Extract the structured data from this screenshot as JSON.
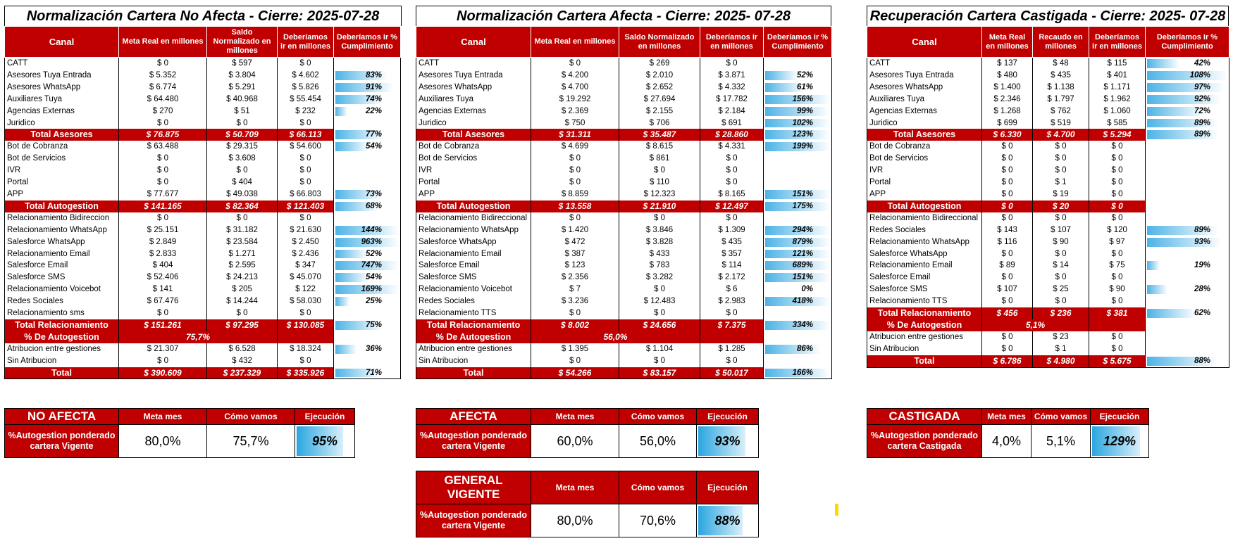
{
  "colors": {
    "header_red": "#c00000",
    "bar_blue": "#4db3e6",
    "marker_yellow": "#ffd800"
  },
  "tables": [
    {
      "title": "Normalización Cartera No Afecta - Cierre: 2025-07-28",
      "headers": [
        "Canal",
        "Meta Real en millones",
        "Saldo Normalizado en millones",
        "Deberíamos ir en millones",
        "Deberíamos ir % Cumplimiento"
      ],
      "rows": [
        {
          "canal": "CATT",
          "meta": "$ 0",
          "saldo": "$ 597",
          "deb": "$ 0",
          "pct": "",
          "fill": 0
        },
        {
          "canal": "Asesores Tuya Entrada",
          "meta": "$ 5.352",
          "saldo": "$ 3.804",
          "deb": "$ 4.602",
          "pct": "83%",
          "fill": 0.83
        },
        {
          "canal": "Asesores WhatsApp",
          "meta": "$ 6.774",
          "saldo": "$ 5.291",
          "deb": "$ 5.826",
          "pct": "91%",
          "fill": 0.91
        },
        {
          "canal": "Auxiliares Tuya",
          "meta": "$ 64.480",
          "saldo": "$ 40.968",
          "deb": "$ 55.454",
          "pct": "74%",
          "fill": 0.74
        },
        {
          "canal": "Agencias Externas",
          "meta": "$ 270",
          "saldo": "$ 51",
          "deb": "$ 232",
          "pct": "22%",
          "fill": 0.22
        },
        {
          "canal": "Juridico",
          "meta": "$ 0",
          "saldo": "$ 0",
          "deb": "$ 0",
          "pct": "",
          "fill": 0
        },
        {
          "total": true,
          "canal": "Total Asesores",
          "meta": "$ 76.875",
          "saldo": "$ 50.709",
          "deb": "$ 66.113",
          "pct": "77%",
          "fill": 0.77
        },
        {
          "canal": "Bot de Cobranza",
          "meta": "$ 63.488",
          "saldo": "$ 29.315",
          "deb": "$ 54.600",
          "pct": "54%",
          "fill": 0.54
        },
        {
          "canal": "Bot de Servicios",
          "meta": "$ 0",
          "saldo": "$ 3.608",
          "deb": "$ 0",
          "pct": "",
          "fill": 0
        },
        {
          "canal": "IVR",
          "meta": "$ 0",
          "saldo": "$ 0",
          "deb": "$ 0",
          "pct": "",
          "fill": 0
        },
        {
          "canal": "Portal",
          "meta": "$ 0",
          "saldo": "$ 404",
          "deb": "$ 0",
          "pct": "",
          "fill": 0
        },
        {
          "canal": "APP",
          "meta": "$ 77.677",
          "saldo": "$ 49.038",
          "deb": "$ 66.803",
          "pct": "73%",
          "fill": 0.73
        },
        {
          "total": true,
          "canal": "Total Autogestion",
          "meta": "$ 141.165",
          "saldo": "$ 82.364",
          "deb": "$ 121.403",
          "pct": "68%",
          "fill": 0.68
        },
        {
          "canal": "Relacionamiento Bidireccion",
          "meta": "$ 0",
          "saldo": "$ 0",
          "deb": "$ 0",
          "pct": "",
          "fill": 0
        },
        {
          "canal": "Relacionamiento WhatsApp",
          "meta": "$ 25.151",
          "saldo": "$ 31.182",
          "deb": "$ 21.630",
          "pct": "144%",
          "fill": 1
        },
        {
          "canal": "Salesforce WhatsApp",
          "meta": "$ 2.849",
          "saldo": "$ 23.584",
          "deb": "$ 2.450",
          "pct": "963%",
          "fill": 1
        },
        {
          "canal": "Relacionamiento Email",
          "meta": "$ 2.833",
          "saldo": "$ 1.271",
          "deb": "$ 2.436",
          "pct": "52%",
          "fill": 0.52
        },
        {
          "canal": "Salesforce Email",
          "meta": "$ 404",
          "saldo": "$ 2.595",
          "deb": "$ 347",
          "pct": "747%",
          "fill": 1
        },
        {
          "canal": "Salesforce SMS",
          "meta": "$ 52.406",
          "saldo": "$ 24.213",
          "deb": "$ 45.070",
          "pct": "54%",
          "fill": 0.54
        },
        {
          "canal": "Relacionamiento Voicebot",
          "meta": "$ 141",
          "saldo": "$ 205",
          "deb": "$ 122",
          "pct": "169%",
          "fill": 1
        },
        {
          "canal": "Redes Sociales",
          "meta": "$ 67.476",
          "saldo": "$ 14.244",
          "deb": "$ 58.030",
          "pct": "25%",
          "fill": 0.25
        },
        {
          "canal": "Relacionamiento sms",
          "meta": "$ 0",
          "saldo": "$ 0",
          "deb": "$ 0",
          "pct": "",
          "fill": 0
        },
        {
          "total": true,
          "canal": "Total Relacionamiento",
          "meta": "$ 151.261",
          "saldo": "$ 97.295",
          "deb": "$ 130.085",
          "pct": "75%",
          "fill": 0.75
        },
        {
          "auto": true,
          "canal": "% De Autogestion",
          "value": "75,7%"
        },
        {
          "canal": "Atribucion entre gestiones",
          "meta": "$ 21.307",
          "saldo": "$ 6.528",
          "deb": "$ 18.324",
          "pct": "36%",
          "fill": 0.36
        },
        {
          "canal": "Sin Atribucion",
          "meta": "$ 0",
          "saldo": "$ 432",
          "deb": "$ 0",
          "pct": "",
          "fill": 0
        },
        {
          "total": true,
          "canal": "Total",
          "meta": "$ 390.609",
          "saldo": "$ 237.329",
          "deb": "$ 335.926",
          "pct": "71%",
          "fill": 0.71
        }
      ]
    },
    {
      "title": "Normalización Cartera Afecta - Cierre: 2025- 07-28",
      "headers": [
        "Canal",
        "Meta Real en millones",
        "Saldo Normalizado en millones",
        "Deberíamos ir en millones",
        "Deberíamos ir % Cumplimiento"
      ],
      "rows": [
        {
          "canal": "CATT",
          "meta": "$ 0",
          "saldo": "$ 269",
          "deb": "$ 0",
          "pct": "",
          "fill": 0
        },
        {
          "canal": "Asesores Tuya Entrada",
          "meta": "$ 4.200",
          "saldo": "$ 2.010",
          "deb": "$ 3.871",
          "pct": "52%",
          "fill": 0.52
        },
        {
          "canal": "Asesores WhatsApp",
          "meta": "$ 4.700",
          "saldo": "$ 2.652",
          "deb": "$ 4.332",
          "pct": "61%",
          "fill": 0.61
        },
        {
          "canal": "Auxiliares Tuya",
          "meta": "$ 19.292",
          "saldo": "$ 27.694",
          "deb": "$ 17.782",
          "pct": "156%",
          "fill": 1
        },
        {
          "canal": "Agencias Externas",
          "meta": "$ 2.369",
          "saldo": "$ 2.155",
          "deb": "$ 2.184",
          "pct": "99%",
          "fill": 0.99
        },
        {
          "canal": "Juridico",
          "meta": "$ 750",
          "saldo": "$ 706",
          "deb": "$ 691",
          "pct": "102%",
          "fill": 1
        },
        {
          "total": true,
          "canal": "Total Asesores",
          "meta": "$ 31.311",
          "saldo": "$ 35.487",
          "deb": "$ 28.860",
          "pct": "123%",
          "fill": 1
        },
        {
          "canal": "Bot de Cobranza",
          "meta": "$ 4.699",
          "saldo": "$ 8.615",
          "deb": "$ 4.331",
          "pct": "199%",
          "fill": 1
        },
        {
          "canal": "Bot de Servicios",
          "meta": "$ 0",
          "saldo": "$ 861",
          "deb": "$ 0",
          "pct": "",
          "fill": 0
        },
        {
          "canal": "IVR",
          "meta": "$ 0",
          "saldo": "$ 0",
          "deb": "$ 0",
          "pct": "",
          "fill": 0
        },
        {
          "canal": "Portal",
          "meta": "$ 0",
          "saldo": "$ 110",
          "deb": "$ 0",
          "pct": "",
          "fill": 0
        },
        {
          "canal": "APP",
          "meta": "$ 8.859",
          "saldo": "$ 12.323",
          "deb": "$ 8.165",
          "pct": "151%",
          "fill": 1
        },
        {
          "total": true,
          "canal": "Total Autogestion",
          "meta": "$ 13.558",
          "saldo": "$ 21.910",
          "deb": "$ 12.497",
          "pct": "175%",
          "fill": 1
        },
        {
          "canal": "Relacionamiento Bidireccional",
          "meta": "$ 0",
          "saldo": "$ 0",
          "deb": "$ 0",
          "pct": "",
          "fill": 0
        },
        {
          "canal": "Relacionamiento WhatsApp",
          "meta": "$ 1.420",
          "saldo": "$ 3.846",
          "deb": "$ 1.309",
          "pct": "294%",
          "fill": 1
        },
        {
          "canal": "Salesforce WhatsApp",
          "meta": "$ 472",
          "saldo": "$ 3.828",
          "deb": "$ 435",
          "pct": "879%",
          "fill": 1
        },
        {
          "canal": "Relacionamiento Email",
          "meta": "$ 387",
          "saldo": "$ 433",
          "deb": "$ 357",
          "pct": "121%",
          "fill": 1
        },
        {
          "canal": "Salesforce Email",
          "meta": "$ 123",
          "saldo": "$ 783",
          "deb": "$ 114",
          "pct": "689%",
          "fill": 1
        },
        {
          "canal": "Salesforce SMS",
          "meta": "$ 2.356",
          "saldo": "$ 3.282",
          "deb": "$ 2.172",
          "pct": "151%",
          "fill": 1
        },
        {
          "canal": "Relacionamiento Voicebot",
          "meta": "$ 7",
          "saldo": "$ 0",
          "deb": "$ 6",
          "pct": "0%",
          "fill": 0
        },
        {
          "canal": "Redes Sociales",
          "meta": "$ 3.236",
          "saldo": "$ 12.483",
          "deb": "$ 2.983",
          "pct": "418%",
          "fill": 1
        },
        {
          "canal": "Relacionamiento TTS",
          "meta": "$ 0",
          "saldo": "$ 0",
          "deb": "$ 0",
          "pct": "",
          "fill": 0
        },
        {
          "total": true,
          "canal": "Total Relacionamiento",
          "meta": "$ 8.002",
          "saldo": "$ 24.656",
          "deb": "$ 7.375",
          "pct": "334%",
          "fill": 1
        },
        {
          "auto": true,
          "canal": "% De Autogestion",
          "value": "56,0%"
        },
        {
          "canal": "Atribucion entre gestiones",
          "meta": "$ 1.395",
          "saldo": "$ 1.104",
          "deb": "$ 1.285",
          "pct": "86%",
          "fill": 0.86
        },
        {
          "canal": "Sin Atribucion",
          "meta": "$ 0",
          "saldo": "$ 0",
          "deb": "$ 0",
          "pct": "",
          "fill": 0
        },
        {
          "total": true,
          "canal": "Total",
          "meta": "$ 54.266",
          "saldo": "$ 83.157",
          "deb": "$ 50.017",
          "pct": "166%",
          "fill": 1
        }
      ]
    },
    {
      "title": "Recuperación Cartera Castigada - Cierre: 2025- 07-28",
      "headers": [
        "Canal",
        "Meta Real en millones",
        "Recaudo en millones",
        "Deberíamos ir en millones",
        "Deberíamos ir % Cumplimiento"
      ],
      "rows": [
        {
          "canal": "CATT",
          "meta": "$ 137",
          "saldo": "$ 48",
          "deb": "$ 115",
          "pct": "42%",
          "fill": 0.42
        },
        {
          "canal": "Asesores Tuya Entrada",
          "meta": "$ 480",
          "saldo": "$ 435",
          "deb": "$ 401",
          "pct": "108%",
          "fill": 1
        },
        {
          "canal": "Asesores WhatsApp",
          "meta": "$ 1.400",
          "saldo": "$ 1.138",
          "deb": "$ 1.171",
          "pct": "97%",
          "fill": 0.97
        },
        {
          "canal": "Auxiliares Tuya",
          "meta": "$ 2.346",
          "saldo": "$ 1.797",
          "deb": "$ 1.962",
          "pct": "92%",
          "fill": 0.92
        },
        {
          "canal": "Agencias Externas",
          "meta": "$ 1.268",
          "saldo": "$ 762",
          "deb": "$ 1.060",
          "pct": "72%",
          "fill": 0.72
        },
        {
          "canal": "Juridico",
          "meta": "$ 699",
          "saldo": "$ 519",
          "deb": "$ 585",
          "pct": "89%",
          "fill": 0.89
        },
        {
          "total": true,
          "canal": "Total Asesores",
          "meta": "$ 6.330",
          "saldo": "$ 4.700",
          "deb": "$ 5.294",
          "pct": "89%",
          "fill": 0.89
        },
        {
          "canal": "Bot de Cobranza",
          "meta": "$ 0",
          "saldo": "$ 0",
          "deb": "$ 0",
          "pct": "",
          "fill": 0
        },
        {
          "canal": "Bot de Servicios",
          "meta": "$ 0",
          "saldo": "$ 0",
          "deb": "$ 0",
          "pct": "",
          "fill": 0
        },
        {
          "canal": "IVR",
          "meta": "$ 0",
          "saldo": "$ 0",
          "deb": "$ 0",
          "pct": "",
          "fill": 0
        },
        {
          "canal": "Portal",
          "meta": "$ 0",
          "saldo": "$ 1",
          "deb": "$ 0",
          "pct": "",
          "fill": 0
        },
        {
          "canal": "APP",
          "meta": "$ 0",
          "saldo": "$ 19",
          "deb": "$ 0",
          "pct": "",
          "fill": 0
        },
        {
          "total": true,
          "canal": "Total Autogestion",
          "meta": "$ 0",
          "saldo": "$ 20",
          "deb": "$ 0",
          "pct": "",
          "fill": 0
        },
        {
          "canal": "Relacionamiento Bidireccional",
          "meta": "$ 0",
          "saldo": "$ 0",
          "deb": "$ 0",
          "pct": "",
          "fill": 0
        },
        {
          "canal": "Redes Sociales",
          "meta": "$ 143",
          "saldo": "$ 107",
          "deb": "$ 120",
          "pct": "89%",
          "fill": 0.89
        },
        {
          "canal": "Relacionamiento WhatsApp",
          "meta": "$ 116",
          "saldo": "$ 90",
          "deb": "$ 97",
          "pct": "93%",
          "fill": 0.93
        },
        {
          "canal": "Salesforce WhatsApp",
          "meta": "$ 0",
          "saldo": "$ 0",
          "deb": "$ 0",
          "pct": "",
          "fill": 0
        },
        {
          "canal": "Relacionamiento Email",
          "meta": "$ 89",
          "saldo": "$ 14",
          "deb": "$ 75",
          "pct": "19%",
          "fill": 0.19
        },
        {
          "canal": "Salesforce Email",
          "meta": "$ 0",
          "saldo": "$ 0",
          "deb": "$ 0",
          "pct": "",
          "fill": 0
        },
        {
          "canal": "Salesforce SMS",
          "meta": "$ 107",
          "saldo": "$ 25",
          "deb": "$ 90",
          "pct": "28%",
          "fill": 0.28
        },
        {
          "canal": "Relacionamiento TTS",
          "meta": "$ 0",
          "saldo": "$ 0",
          "deb": "$ 0",
          "pct": "",
          "fill": 0
        },
        {
          "total": true,
          "canal": "Total Relacionamiento",
          "meta": "$ 456",
          "saldo": "$ 236",
          "deb": "$ 381",
          "pct": "62%",
          "fill": 0.62
        },
        {
          "auto": true,
          "canal": "% De Autogestion",
          "value": "5,1%"
        },
        {
          "canal": "Atribucion entre gestiones",
          "meta": "$ 0",
          "saldo": "$ 23",
          "deb": "$ 0",
          "pct": "",
          "fill": 0
        },
        {
          "canal": "Sin Atribucion",
          "meta": "$ 0",
          "saldo": "$ 1",
          "deb": "$ 0",
          "pct": "",
          "fill": 0
        },
        {
          "total": true,
          "canal": "Total",
          "meta": "$ 6.786",
          "saldo": "$ 4.980",
          "deb": "$ 5.675",
          "pct": "88%",
          "fill": 0.88
        }
      ]
    }
  ],
  "kpis": [
    {
      "name": "NO AFECTA",
      "desc": "%Autogestion ponderado cartera Vigente",
      "h_meta": "Meta mes",
      "h_como": "Cómo vamos",
      "h_ejec": "Ejecución",
      "meta": "80,0%",
      "como": "75,7%",
      "ejec": "95%",
      "fill": 0.95
    },
    {
      "name": "AFECTA",
      "desc": "%Autogestion ponderado cartera Vigente",
      "h_meta": "Meta mes",
      "h_como": "Cómo vamos",
      "h_ejec": "Ejecución",
      "meta": "60,0%",
      "como": "56,0%",
      "ejec": "93%",
      "fill": 0.93
    },
    {
      "name": "CASTIGADA",
      "desc": "%Autogestion ponderado cartera Castigada",
      "h_meta": "Meta mes",
      "h_como": "Cómo vamos",
      "h_ejec": "Ejecución",
      "meta": "4,0%",
      "como": "5,1%",
      "ejec": "129%",
      "fill": 1
    },
    {
      "name": "GENERAL VIGENTE",
      "desc": "%Autogestion ponderado cartera Vigente",
      "h_meta": "Meta mes",
      "h_como": "Cómo vamos",
      "h_ejec": "Ejecución",
      "meta": "80,0%",
      "como": "70,6%",
      "ejec": "88%",
      "fill": 0.88
    }
  ]
}
